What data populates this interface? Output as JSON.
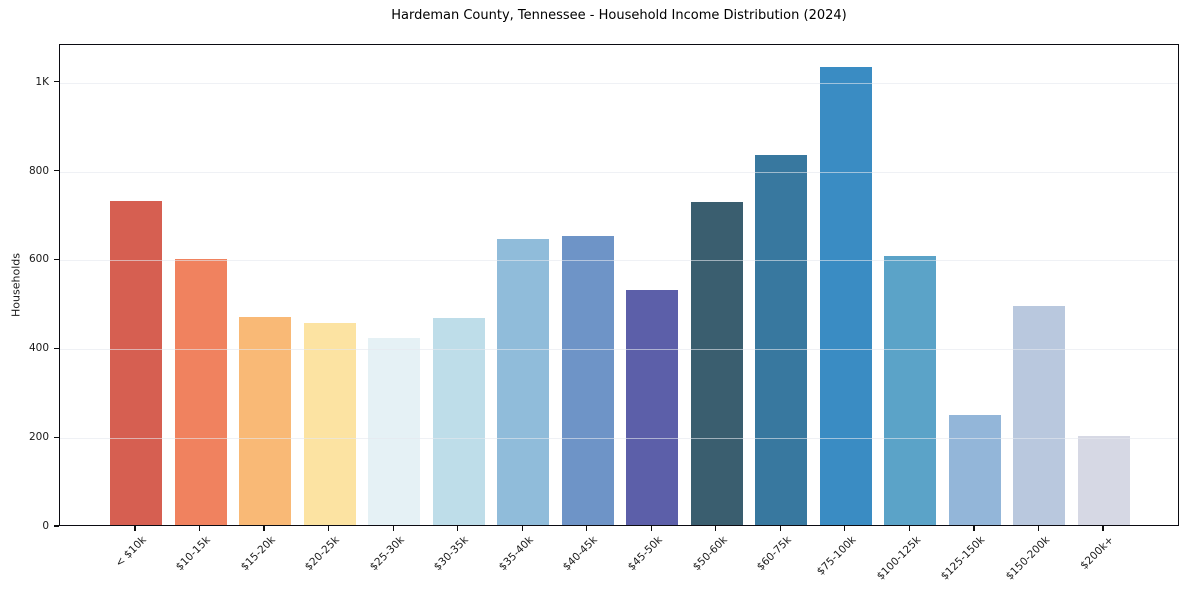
{
  "chart_data": {
    "type": "bar",
    "title": "Hardeman County, Tennessee - Household Income Distribution (2024)",
    "xlabel": "",
    "ylabel": "Households",
    "categories": [
      "< $10k",
      "$10-15k",
      "$15-20k",
      "$20-25k",
      "$25-30k",
      "$30-35k",
      "$35-40k",
      "$40-45k",
      "$45-50k",
      "$50-60k",
      "$60-75k",
      "$75-100k",
      "$100-125k",
      "$125-150k",
      "$150-200k",
      "$200k+"
    ],
    "values": [
      730,
      598,
      469,
      455,
      420,
      466,
      644,
      651,
      528,
      728,
      832,
      1031,
      606,
      248,
      494,
      201
    ],
    "bar_colors": [
      "#d65f51",
      "#f0825f",
      "#f9b976",
      "#fce3a2",
      "#e5f1f5",
      "#bedde9",
      "#90bcda",
      "#6e94c7",
      "#5c5fa9",
      "#3a5e6f",
      "#38789f",
      "#3a8cc3",
      "#5ba3c8",
      "#93b6d9",
      "#b9c8de",
      "#d6d8e4"
    ],
    "ylim": [
      0,
      1085
    ],
    "yticks": [
      0,
      200,
      400,
      600,
      800,
      1000
    ],
    "ytick_labels": [
      "0",
      "200",
      "400",
      "600",
      "800",
      "1K"
    ],
    "grid": "horizontal-light-above-bars",
    "legend": "none",
    "background_color": "#ffffff",
    "spine_color": "#0b0b12",
    "gridline_color": "#ececf1"
  }
}
